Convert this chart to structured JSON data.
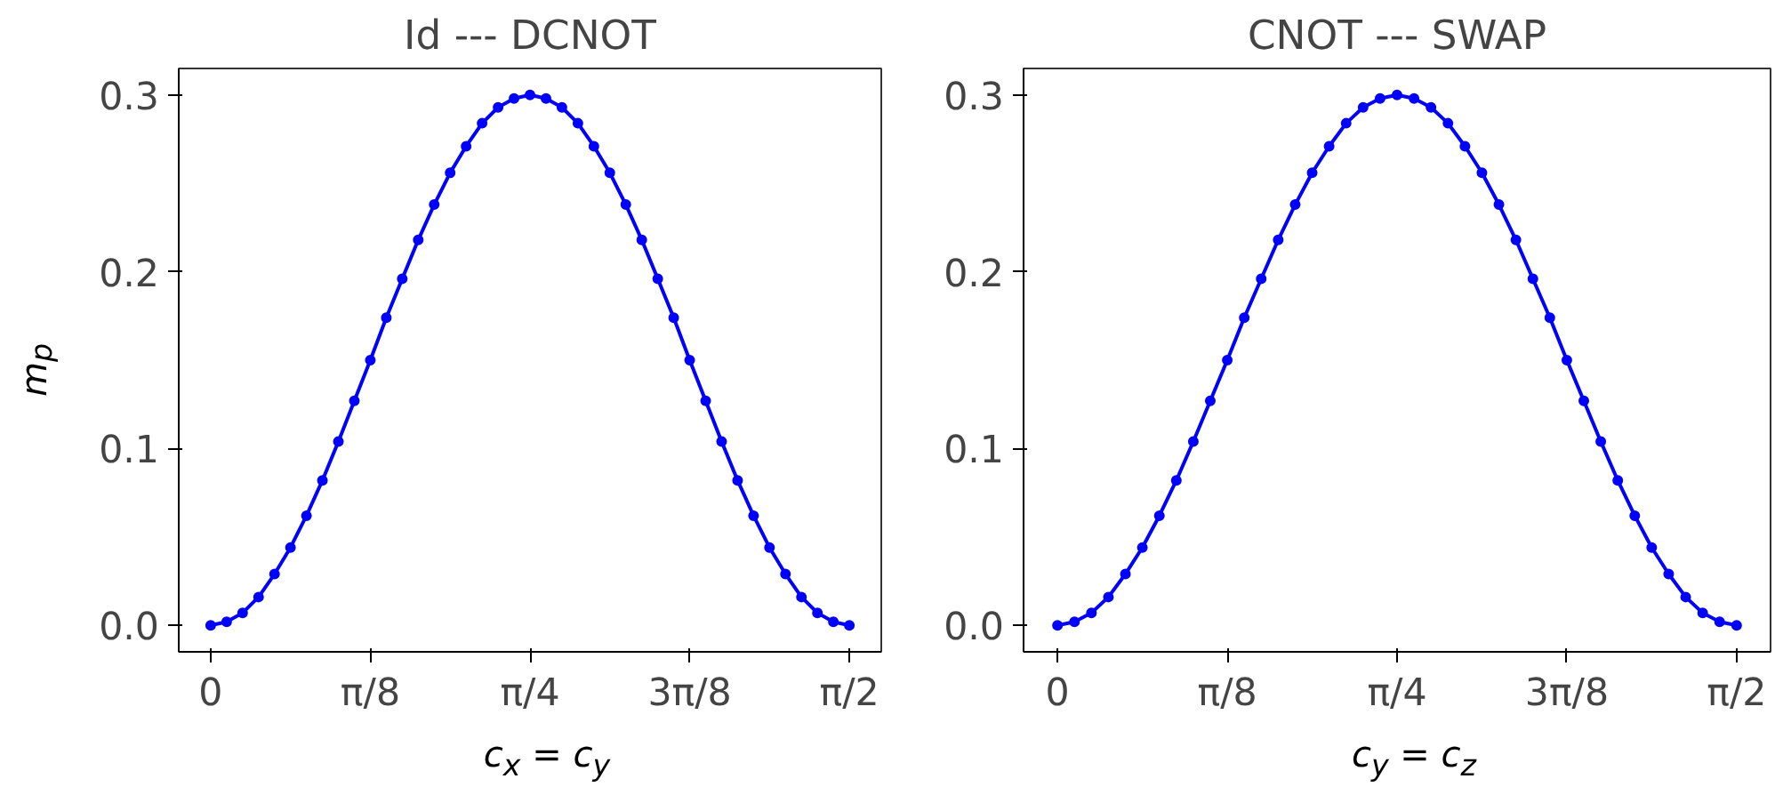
{
  "chart_data": [
    {
      "type": "line",
      "title": "Id --- DCNOT",
      "xlabel": "c$_{x}$ = c$_{y}$",
      "ylabel": "m$_{p}$",
      "marker": "circle",
      "grid": false,
      "x": [
        0,
        0.0393,
        0.0785,
        0.1178,
        0.1571,
        0.1963,
        0.2356,
        0.2749,
        0.3142,
        0.3534,
        0.3927,
        0.432,
        0.4712,
        0.5105,
        0.5498,
        0.589,
        0.6283,
        0.6676,
        0.7069,
        0.7461,
        0.7854,
        0.8247,
        0.8639,
        0.9032,
        0.9425,
        0.9817,
        1.021,
        1.0603,
        1.0996,
        1.1388,
        1.1781,
        1.2174,
        1.2566,
        1.2959,
        1.3352,
        1.3744,
        1.4137,
        1.453,
        1.4923,
        1.5315,
        1.5708
      ],
      "series": [
        {
          "color": "#0000ff",
          "values": [
            0,
            0.002,
            0.007,
            0.016,
            0.029,
            0.044,
            0.062,
            0.082,
            0.104,
            0.127,
            0.15,
            0.174,
            0.196,
            0.218,
            0.238,
            0.256,
            0.271,
            0.284,
            0.293,
            0.298,
            0.3,
            0.298,
            0.293,
            0.284,
            0.271,
            0.256,
            0.238,
            0.218,
            0.196,
            0.174,
            0.15,
            0.127,
            0.104,
            0.082,
            0.062,
            0.044,
            0.029,
            0.016,
            0.007,
            0.002,
            0
          ]
        }
      ],
      "xlim": [
        -0.0785,
        1.6493
      ],
      "ylim": [
        -0.015,
        0.315
      ],
      "xticks": [
        {
          "value": 0,
          "label": "0"
        },
        {
          "value": 0.3927,
          "label": "π/8"
        },
        {
          "value": 0.7854,
          "label": "π/4"
        },
        {
          "value": 1.1781,
          "label": "3π/8"
        },
        {
          "value": 1.5708,
          "label": "π/2"
        }
      ],
      "yticks": [
        {
          "value": 0,
          "label": "0.0"
        },
        {
          "value": 0.1,
          "label": "0.1"
        },
        {
          "value": 0.2,
          "label": "0.2"
        },
        {
          "value": 0.3,
          "label": "0.3"
        }
      ]
    },
    {
      "type": "line",
      "title": "CNOT --- SWAP",
      "xlabel": "c$_{y}$ = c$_{z}$",
      "marker": "circle",
      "grid": false,
      "x": [
        0,
        0.0393,
        0.0785,
        0.1178,
        0.1571,
        0.1963,
        0.2356,
        0.2749,
        0.3142,
        0.3534,
        0.3927,
        0.432,
        0.4712,
        0.5105,
        0.5498,
        0.589,
        0.6283,
        0.6676,
        0.7069,
        0.7461,
        0.7854,
        0.8247,
        0.8639,
        0.9032,
        0.9425,
        0.9817,
        1.021,
        1.0603,
        1.0996,
        1.1388,
        1.1781,
        1.2174,
        1.2566,
        1.2959,
        1.3352,
        1.3744,
        1.4137,
        1.453,
        1.4923,
        1.5315,
        1.5708
      ],
      "series": [
        {
          "color": "#0000ff",
          "values": [
            0,
            0.002,
            0.007,
            0.016,
            0.029,
            0.044,
            0.062,
            0.082,
            0.104,
            0.127,
            0.15,
            0.174,
            0.196,
            0.218,
            0.238,
            0.256,
            0.271,
            0.284,
            0.293,
            0.298,
            0.3,
            0.298,
            0.293,
            0.284,
            0.271,
            0.256,
            0.238,
            0.218,
            0.196,
            0.174,
            0.15,
            0.127,
            0.104,
            0.082,
            0.062,
            0.044,
            0.029,
            0.016,
            0.007,
            0.002,
            0
          ]
        }
      ],
      "xlim": [
        -0.0785,
        1.6493
      ],
      "ylim": [
        -0.015,
        0.315
      ],
      "xticks": [
        {
          "value": 0,
          "label": "0"
        },
        {
          "value": 0.3927,
          "label": "π/8"
        },
        {
          "value": 0.7854,
          "label": "π/4"
        },
        {
          "value": 1.1781,
          "label": "3π/8"
        },
        {
          "value": 1.5708,
          "label": "π/2"
        }
      ],
      "yticks": [
        {
          "value": 0,
          "label": "0.0"
        },
        {
          "value": 0.1,
          "label": "0.1"
        },
        {
          "value": 0.2,
          "label": "0.2"
        },
        {
          "value": 0.3,
          "label": "0.3"
        }
      ]
    }
  ]
}
